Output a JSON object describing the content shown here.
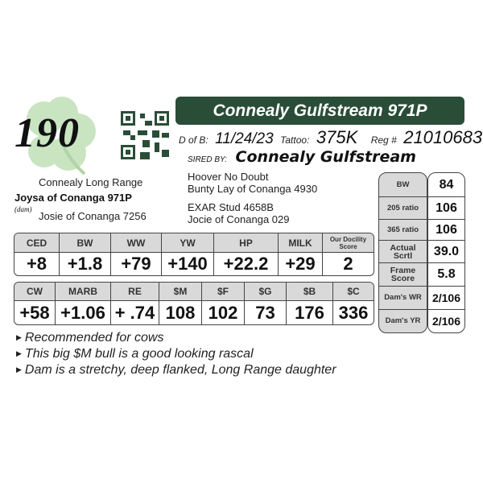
{
  "lot_number": "190",
  "title": "Connealy Gulfstream 971P",
  "details": {
    "dob_label": "D of B:",
    "dob": "11/24/23",
    "tattoo_label": "Tattoo:",
    "tattoo": "375K",
    "reg_label": "Reg #",
    "reg": "21010683",
    "sired_by_label": "SIRED BY:",
    "sire": "Connealy Gulfstream"
  },
  "pedigree": {
    "dam_sire": "Connealy Long Range",
    "dam": "Joysa of Conanga 971P",
    "dam_label": "(dam)",
    "dam_dam": "Josie of Conanga 7256",
    "sire_sire": "Hoover No Doubt",
    "sire_dam": "Bunty Lay of Conanga 4930",
    "dam_sire_sire": "EXAR Stud 4658B",
    "dam_sire_dam": "Jocie of Conanga 029"
  },
  "epd1": {
    "headers": [
      "CED",
      "BW",
      "WW",
      "YW",
      "HP",
      "MILK",
      "Our Docility Score"
    ],
    "values": [
      "+8",
      "+1.8",
      "+79",
      "+140",
      "+22.2",
      "+29",
      "2"
    ]
  },
  "epd2": {
    "headers": [
      "CW",
      "MARB",
      "RE",
      "$M",
      "$F",
      "$G",
      "$B",
      "$C"
    ],
    "values": [
      "+58",
      "+1.06",
      "+ .74",
      "108",
      "102",
      "73",
      "176",
      "336"
    ]
  },
  "side": {
    "labels": [
      "BW",
      "205 ratio",
      "365 ratio",
      "Actual Scrtl",
      "Frame Score",
      "Dam's WR",
      "Dam's YR"
    ],
    "values": [
      "84",
      "106",
      "106",
      "39.0",
      "5.8",
      "2/106",
      "2/106"
    ]
  },
  "notes": [
    "Recommended for cows",
    "This big $M bull is a good looking rascal",
    "Dam is a stretchy, deep flanked, Long Range daughter"
  ],
  "colors": {
    "title_bar": "#2a4d37",
    "shamrock": "#b9dcb0",
    "header_gray": "#d9d9d9"
  }
}
